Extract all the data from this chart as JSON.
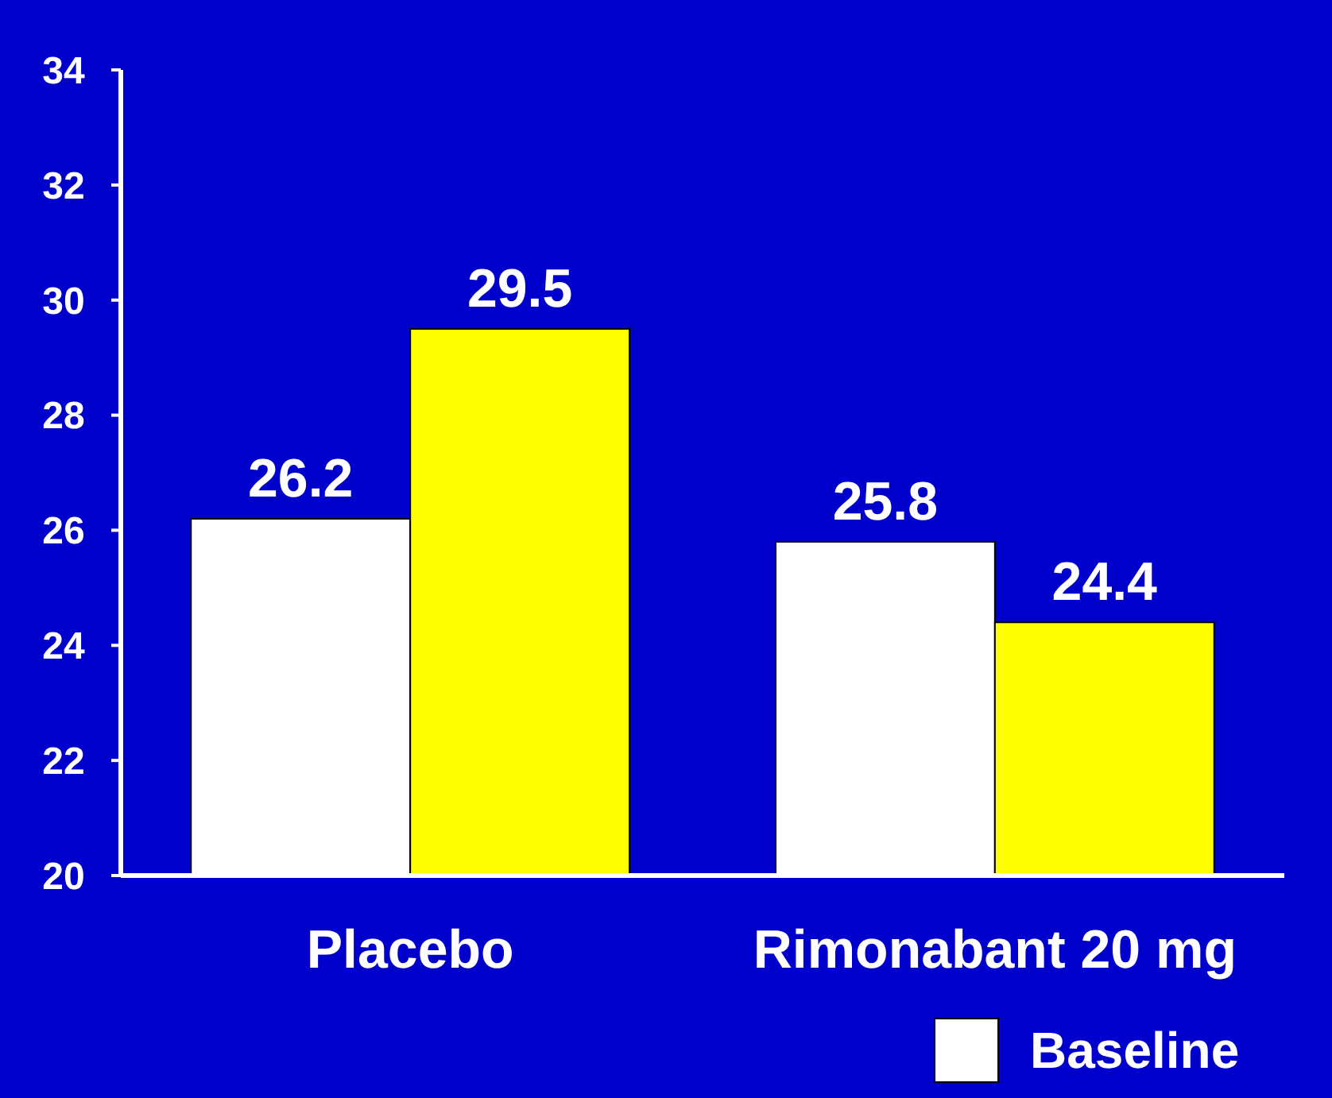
{
  "chart_data": {
    "type": "bar",
    "categories": [
      "Placebo",
      "Rimonabant 20 mg"
    ],
    "series": [
      {
        "name": "Baseline",
        "color": "#ffffff",
        "values": [
          26.2,
          25.8
        ]
      },
      {
        "color": "#ffff00",
        "values": [
          29.5,
          24.4
        ]
      }
    ],
    "ylim": [
      20,
      34
    ],
    "yticks": [
      20,
      22,
      24,
      26,
      28,
      30,
      32,
      34
    ],
    "data_labels": true,
    "legend": "bottom right",
    "grid": false
  }
}
